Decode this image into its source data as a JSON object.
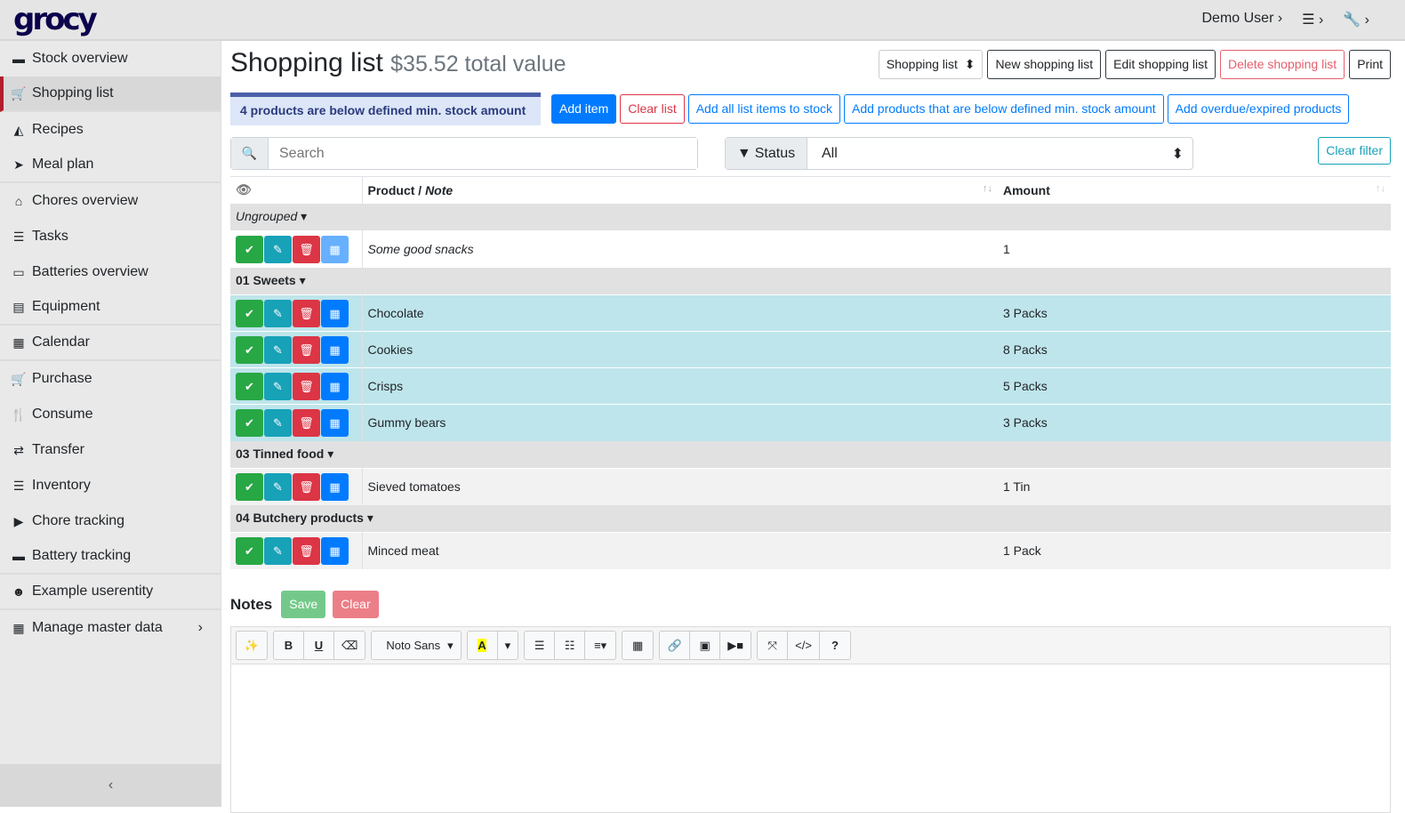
{
  "app": {
    "logo": "grocy",
    "user": "Demo User ›",
    "settings": "☰ ›",
    "tools": "🔧 ›"
  },
  "sidebar": {
    "items": [
      {
        "label": "Stock overview",
        "icon": "box-icon",
        "glyph": "▬"
      },
      {
        "label": "Shopping list",
        "icon": "cart-icon",
        "glyph": "🛒"
      },
      {
        "label": "Recipes",
        "icon": "pizza-icon",
        "glyph": "◭"
      },
      {
        "label": "Meal plan",
        "icon": "paper-plane-icon",
        "glyph": "➤"
      },
      {
        "label": "Chores overview",
        "icon": "home-icon",
        "glyph": "⌂"
      },
      {
        "label": "Tasks",
        "icon": "tasks-icon",
        "glyph": "☰"
      },
      {
        "label": "Batteries overview",
        "icon": "battery-icon",
        "glyph": "▭"
      },
      {
        "label": "Equipment",
        "icon": "toolbox-icon",
        "glyph": "▤"
      },
      {
        "label": "Calendar",
        "icon": "calendar-icon",
        "glyph": "▦"
      },
      {
        "label": "Purchase",
        "icon": "cart-plus-icon",
        "glyph": "🛒"
      },
      {
        "label": "Consume",
        "icon": "utensils-icon",
        "glyph": "🍴"
      },
      {
        "label": "Transfer",
        "icon": "exchange-icon",
        "glyph": "⇄"
      },
      {
        "label": "Inventory",
        "icon": "list-icon",
        "glyph": "☰"
      },
      {
        "label": "Chore tracking",
        "icon": "play-icon",
        "glyph": "▶"
      },
      {
        "label": "Battery tracking",
        "icon": "car-battery-icon",
        "glyph": "▬"
      },
      {
        "label": "Example userentity",
        "icon": "smile-icon",
        "glyph": "☻"
      },
      {
        "label": "Manage master data",
        "icon": "table-icon",
        "glyph": "▦"
      }
    ],
    "collapse": "‹"
  },
  "header": {
    "title": "Shopping list",
    "subtitle": "$35.52 total value",
    "select": "Shopping list",
    "new": "New shopping list",
    "edit": "Edit shopping list",
    "delete": "Delete shopping list",
    "print": "Print"
  },
  "toolbar": {
    "alert": "4 products are below defined min. stock amount",
    "add": "Add item",
    "clear": "Clear list",
    "add_all": "Add all list items to stock",
    "add_below": "Add products that are below defined min. stock amount",
    "add_overdue": "Add overdue/expired products"
  },
  "filter": {
    "search_placeholder": "Search",
    "status_label": "Status",
    "status_value": "All",
    "clear": "Clear filter"
  },
  "table": {
    "headers": {
      "product": "Product / ",
      "note": "Note",
      "amount": "Amount"
    },
    "groups": [
      {
        "name": "Ungrouped",
        "italic": true,
        "rows": [
          {
            "product": "Some good snacks",
            "amount": "1",
            "note": true
          }
        ]
      },
      {
        "name": "01 Sweets",
        "rows": [
          {
            "product": "Chocolate",
            "amount": "3 Packs",
            "hl": true
          },
          {
            "product": "Cookies",
            "amount": "8 Packs",
            "hl": true
          },
          {
            "product": "Crisps",
            "amount": "5 Packs",
            "hl": true
          },
          {
            "product": "Gummy bears",
            "amount": "3 Packs",
            "hl": true
          }
        ]
      },
      {
        "name": "03 Tinned food",
        "rows": [
          {
            "product": "Sieved tomatoes",
            "amount": "1 Tin"
          }
        ]
      },
      {
        "name": "04 Butchery products",
        "rows": [
          {
            "product": "Minced meat",
            "amount": "1 Pack"
          }
        ]
      }
    ]
  },
  "notes": {
    "label": "Notes",
    "save": "Save",
    "clear": "Clear",
    "font": "Noto Sans"
  }
}
